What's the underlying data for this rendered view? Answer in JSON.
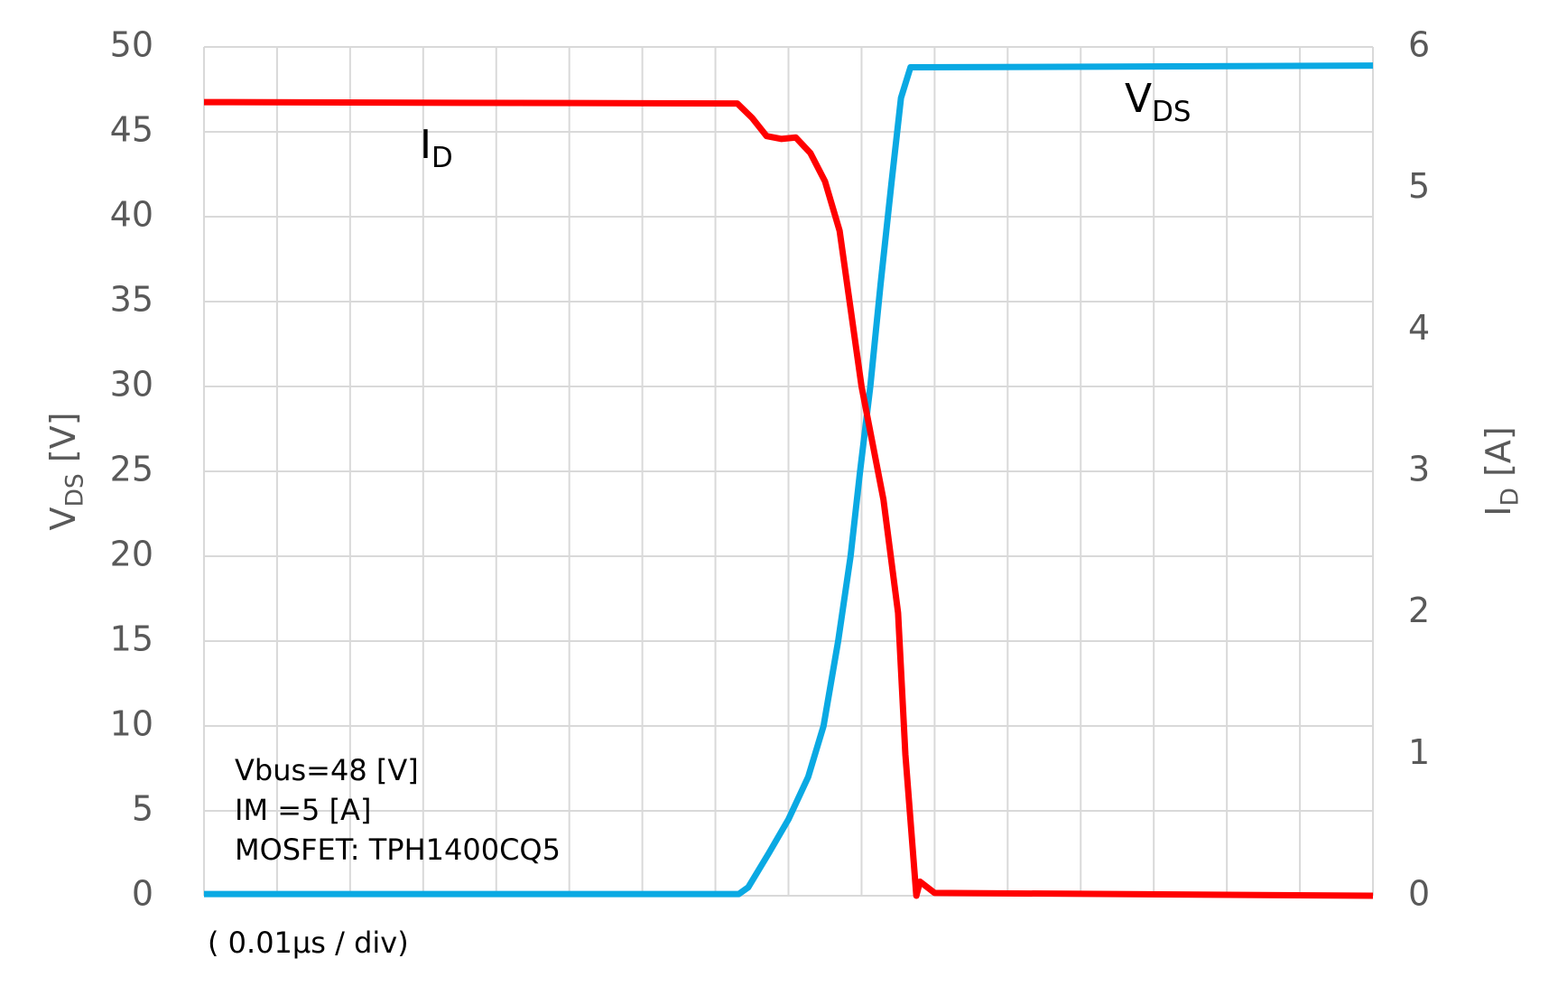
{
  "chart_data": {
    "type": "line",
    "y_label": {
      "main": "V",
      "sub": "DS",
      "rest": " [V]"
    },
    "y2_label": {
      "main": "I",
      "sub": "D",
      "rest": " [A]"
    },
    "x_label": "( 0.01μs / div)",
    "notes": [
      "Vbus=48 [V]",
      "IM =5 [A]",
      "MOSFET: TPH1400CQ5"
    ],
    "xlim": [
      0,
      16
    ],
    "xticks": [
      0,
      1,
      2,
      3,
      4,
      5,
      6,
      7,
      8,
      9,
      10,
      11,
      12,
      13,
      14,
      15,
      16
    ],
    "ylim": [
      0,
      50
    ],
    "yticks": [
      0,
      5,
      10,
      15,
      20,
      25,
      30,
      35,
      40,
      45,
      50
    ],
    "y2lim": [
      0,
      6
    ],
    "y2ticks": [
      0,
      1,
      2,
      3,
      4,
      5,
      6
    ],
    "grid": true,
    "series": [
      {
        "name": {
          "main": "V",
          "sub": "DS"
        },
        "color": "#0aa9e3",
        "x": [
          0,
          7.32,
          7.45,
          7.73,
          8.0,
          8.27,
          8.48,
          8.68,
          8.85,
          8.98,
          9.12,
          9.26,
          9.41,
          9.54,
          9.67,
          9.75,
          16
        ],
        "values": [
          0.1,
          0.1,
          0.5,
          2.5,
          4.5,
          7,
          10,
          15,
          20,
          25,
          30,
          36,
          42,
          47,
          48.8,
          48.8,
          48.9
        ]
      },
      {
        "name": {
          "main": "I",
          "sub": "D"
        },
        "color": "#ff0000",
        "axis": "y2",
        "x": [
          0,
          7.3,
          7.5,
          7.7,
          7.9,
          8.1,
          8.3,
          8.5,
          8.7,
          9.0,
          9.3,
          9.5,
          9.6,
          9.75,
          9.8,
          10.0,
          16
        ],
        "values": [
          5.61,
          5.6,
          5.5,
          5.37,
          5.35,
          5.36,
          5.25,
          5.05,
          4.7,
          3.6,
          2.8,
          2.0,
          1.0,
          0.0,
          0.1,
          0.02,
          0.0
        ]
      }
    ]
  }
}
